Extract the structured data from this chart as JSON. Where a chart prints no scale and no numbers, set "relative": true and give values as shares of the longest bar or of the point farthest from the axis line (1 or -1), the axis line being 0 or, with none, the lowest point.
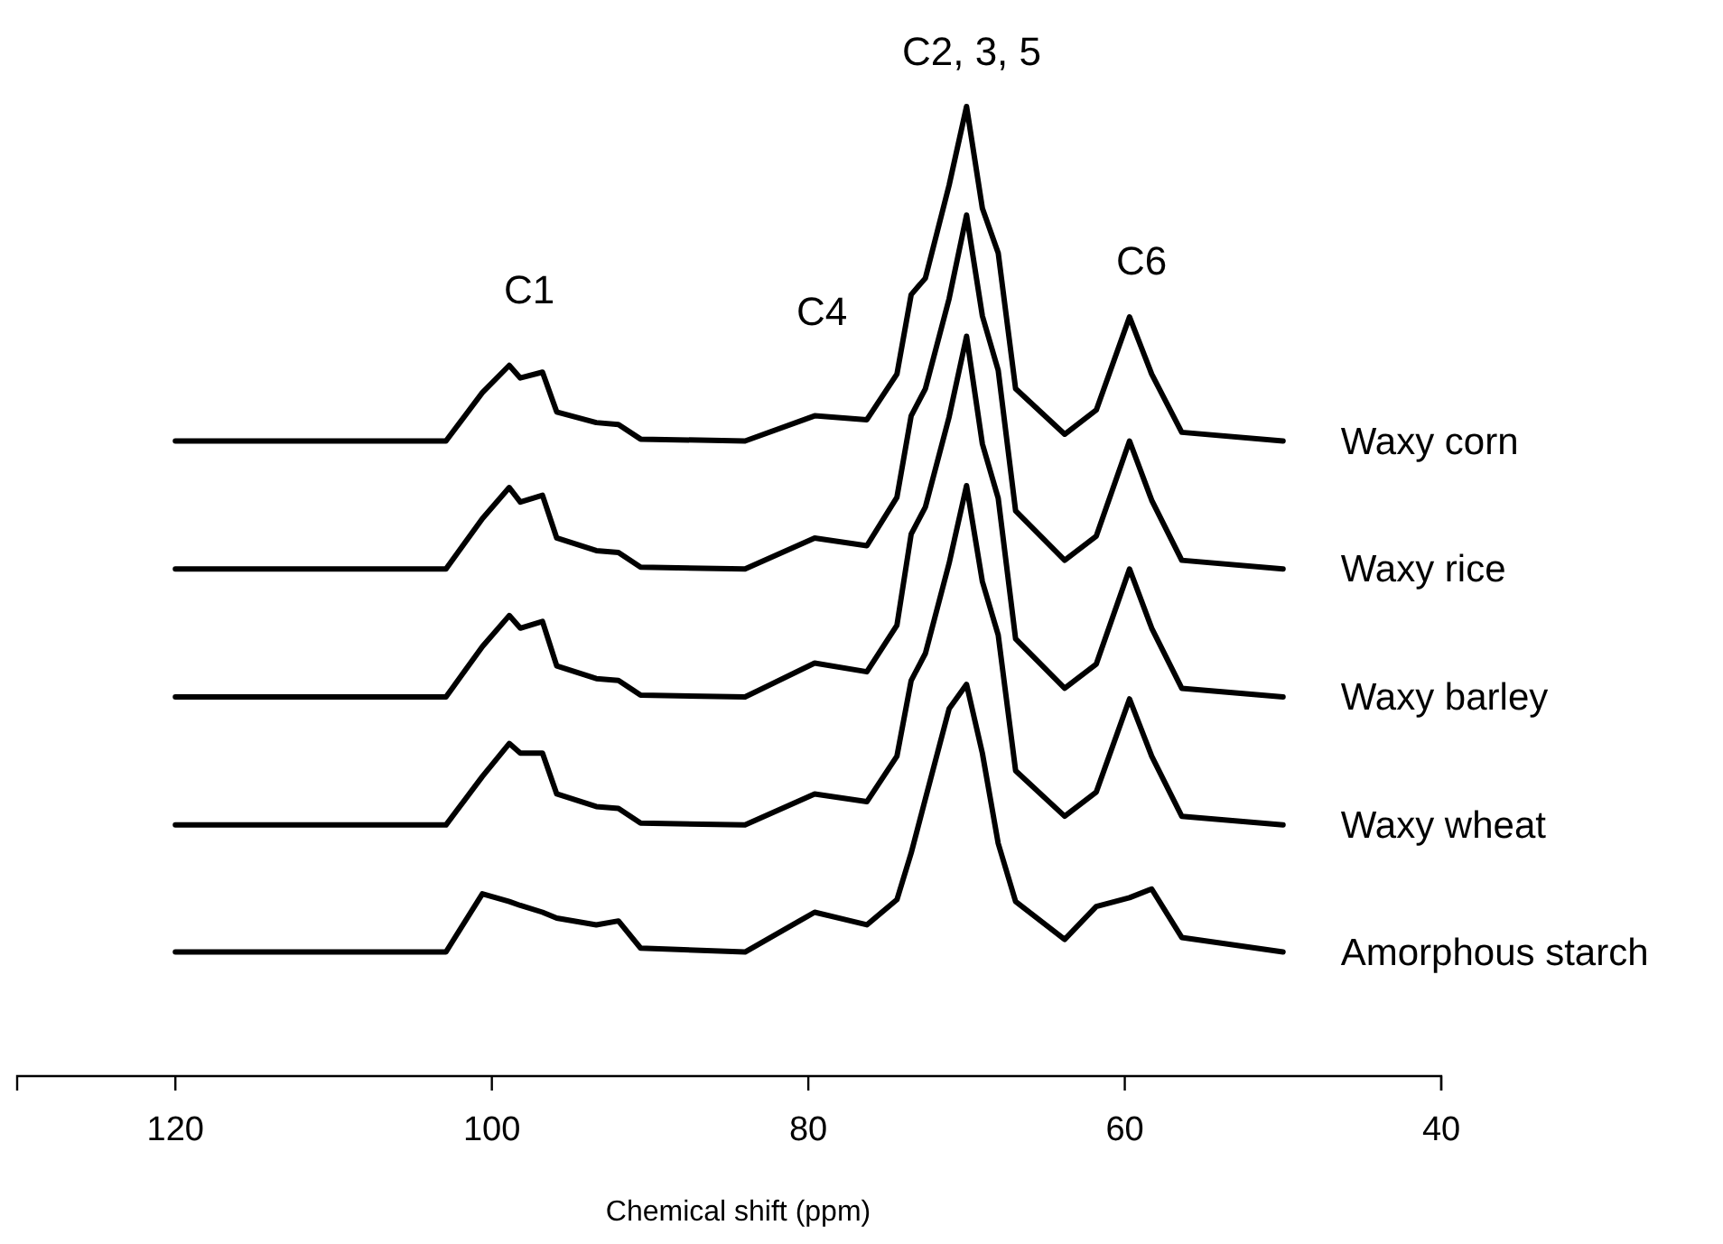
{
  "chart_data": {
    "type": "line",
    "relative": true,
    "xlabel": "Chemical shift (ppm)",
    "xlim": [
      130,
      40
    ],
    "xticks": [
      120,
      100,
      80,
      60,
      40
    ],
    "x": [
      120,
      102.9,
      100.6,
      98.9,
      98.2,
      96.8,
      95.9,
      93.4,
      92.0,
      90.6,
      84,
      79.6,
      76.3,
      74.4,
      73.5,
      72.6,
      71.1,
      70.0,
      69.0,
      68.0,
      66.9,
      63.8,
      61.8,
      59.7,
      58.3,
      56.4,
      50
    ],
    "series": [
      {
        "name": "Waxy corn",
        "color": "#000000",
        "values": [
          0.655,
          0.655,
          0.705,
          0.733,
          0.72,
          0.726,
          0.685,
          0.674,
          0.672,
          0.657,
          0.655,
          0.681,
          0.677,
          0.724,
          0.806,
          0.823,
          0.919,
          1,
          0.895,
          0.849,
          0.709,
          0.662,
          0.687,
          0.783,
          0.724,
          0.664,
          0.655
        ]
      },
      {
        "name": "Waxy rice",
        "color": "#000000",
        "values": [
          0.523,
          0.523,
          0.575,
          0.607,
          0.592,
          0.599,
          0.555,
          0.542,
          0.54,
          0.525,
          0.523,
          0.555,
          0.547,
          0.597,
          0.681,
          0.709,
          0.802,
          0.888,
          0.784,
          0.728,
          0.583,
          0.532,
          0.557,
          0.655,
          0.594,
          0.532,
          0.523
        ]
      },
      {
        "name": "Waxy barley",
        "color": "#000000",
        "values": [
          0.391,
          0.391,
          0.443,
          0.475,
          0.462,
          0.469,
          0.423,
          0.41,
          0.408,
          0.393,
          0.391,
          0.426,
          0.417,
          0.465,
          0.559,
          0.587,
          0.68,
          0.763,
          0.652,
          0.596,
          0.451,
          0.4,
          0.425,
          0.523,
          0.462,
          0.4,
          0.391
        ]
      },
      {
        "name": "Waxy wheat",
        "color": "#000000",
        "values": [
          0.259,
          0.259,
          0.309,
          0.343,
          0.333,
          0.333,
          0.291,
          0.278,
          0.276,
          0.261,
          0.259,
          0.291,
          0.283,
          0.33,
          0.408,
          0.436,
          0.529,
          0.609,
          0.51,
          0.455,
          0.315,
          0.268,
          0.293,
          0.389,
          0.33,
          0.268,
          0.259
        ]
      },
      {
        "name": "Amorphous starch",
        "color": "#000000",
        "values": [
          0.128,
          0.128,
          0.188,
          0.18,
          0.176,
          0.169,
          0.163,
          0.156,
          0.16,
          0.132,
          0.128,
          0.169,
          0.156,
          0.182,
          0.23,
          0.286,
          0.379,
          0.404,
          0.333,
          0.24,
          0.18,
          0.141,
          0.175,
          0.184,
          0.193,
          0.143,
          0.128
        ]
      }
    ],
    "annotations": [
      "C1",
      "C4",
      "C2, 3, 5",
      "C6"
    ]
  }
}
